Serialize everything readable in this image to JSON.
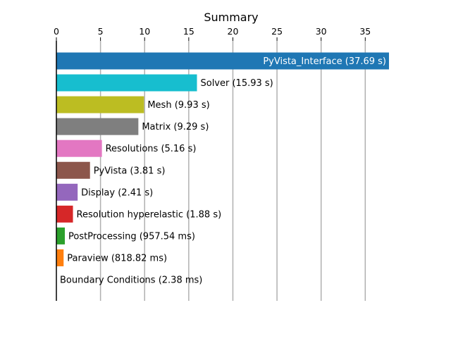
{
  "chart_data": {
    "type": "bar",
    "orientation": "horizontal",
    "title": "Summary",
    "xlabel": "",
    "ylabel": "",
    "xlim": [
      0,
      37.69
    ],
    "x_ticks": [
      0,
      5,
      10,
      15,
      20,
      25,
      30,
      35
    ],
    "x_axis_position": "top",
    "grid": "vertical",
    "legend": "none",
    "bars": [
      {
        "name": "PyVista_Interface",
        "value": 37.69,
        "label": "PyVista_Interface (37.69 s)",
        "color": "#1f77b4",
        "label_inside": true
      },
      {
        "name": "Solver",
        "value": 15.93,
        "label": "Solver (15.93 s)",
        "color": "#17becf"
      },
      {
        "name": "Mesh",
        "value": 9.93,
        "label": "Mesh (9.93 s)",
        "color": "#bcbd22"
      },
      {
        "name": "Matrix",
        "value": 9.29,
        "label": "Matrix (9.29 s)",
        "color": "#7f7f7f"
      },
      {
        "name": "Resolutions",
        "value": 5.16,
        "label": "Resolutions (5.16 s)",
        "color": "#e377c2"
      },
      {
        "name": "PyVista",
        "value": 3.81,
        "label": "PyVista (3.81 s)",
        "color": "#8c564b"
      },
      {
        "name": "Display",
        "value": 2.41,
        "label": "Display (2.41 s)",
        "color": "#9467bd"
      },
      {
        "name": "Resolution hyperelastic",
        "value": 1.88,
        "label": "Resolution hyperelastic (1.88 s)",
        "color": "#d62728"
      },
      {
        "name": "PostProcessing",
        "value": 0.95754,
        "label": "PostProcessing (957.54 ms)",
        "color": "#2ca02c"
      },
      {
        "name": "Paraview",
        "value": 0.81882,
        "label": "Paraview (818.82 ms)",
        "color": "#ff7f0e"
      },
      {
        "name": "Boundary Conditions",
        "value": 0.00238,
        "label": "Boundary Conditions (2.38 ms)",
        "color": "#1f77b4"
      }
    ]
  }
}
